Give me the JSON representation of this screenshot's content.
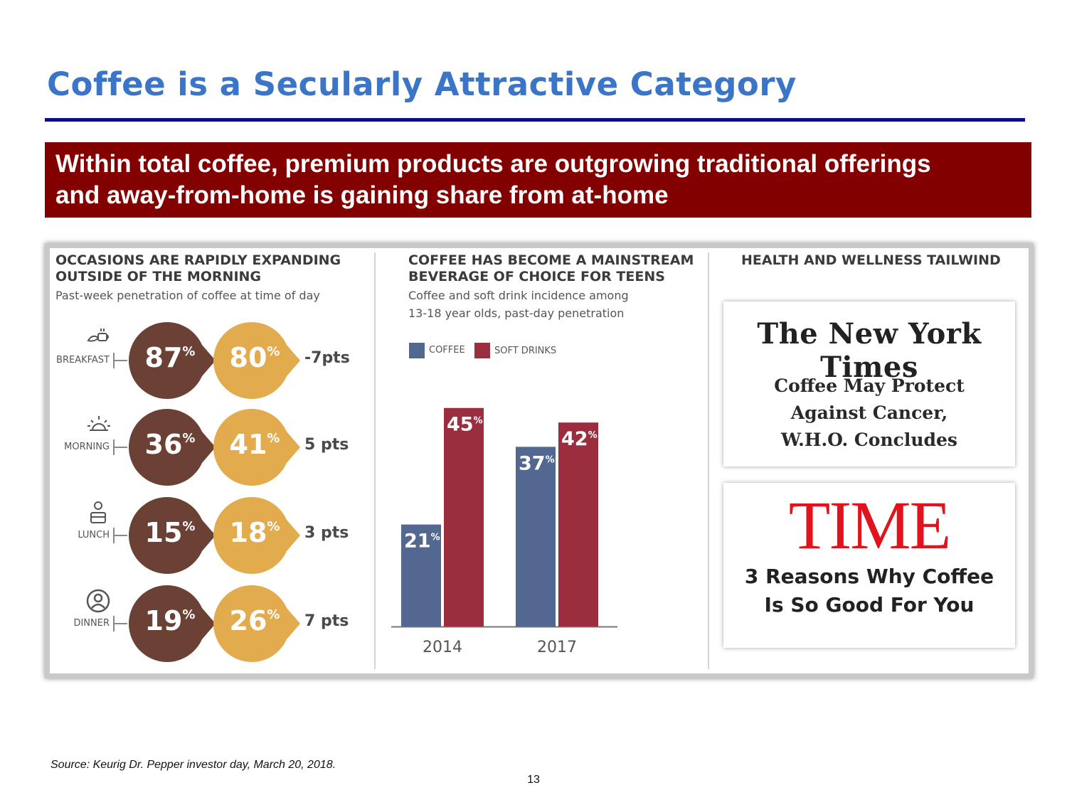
{
  "slide": {
    "title": "Coffee is a Secularly Attractive Category",
    "banner_line1": "Within total coffee, premium products are outgrowing traditional offerings",
    "banner_line2": "and away-from-home is gaining share from at-home",
    "source": "Source: Keurig Dr. Pepper investor day, March 20, 2018.",
    "page_number": "13"
  },
  "colors": {
    "title_blue": "#3a75c8",
    "rule_navy": "#0a0f8a",
    "banner_red": "#820000",
    "brown": "#6b4135",
    "gold": "#e2ab4e",
    "coffee_blue": "#526890",
    "soft_red": "#9b2e3e",
    "time_red": "#e0141c"
  },
  "occasions": {
    "heading_line1": "OCCASIONS ARE RAPIDLY EXPANDING",
    "heading_line2": "OUTSIDE OF THE MORNING",
    "subtitle": "Past-week penetration of coffee at time of day",
    "rows": [
      {
        "label": "BREAKFAST",
        "icon": "croissant-cup-icon",
        "before": "87",
        "after": "80",
        "delta": "-7pts"
      },
      {
        "label": "MORNING",
        "icon": "sunrise-icon",
        "before": "36",
        "after": "41",
        "delta": "5 pts"
      },
      {
        "label": "LUNCH",
        "icon": "lunchbox-icon",
        "before": "15",
        "after": "18",
        "delta": "3 pts"
      },
      {
        "label": "DINNER",
        "icon": "person-icon",
        "before": "19",
        "after": "26",
        "delta": "7 pts"
      }
    ],
    "pct": "%"
  },
  "teens": {
    "heading_line1": "COFFEE HAS BECOME A MAINSTREAM",
    "heading_line2": "BEVERAGE OF CHOICE FOR TEENS",
    "subtitle_line1": "Coffee and soft drink incidence among",
    "subtitle_line2": "13-18 year olds, past-day penetration"
  },
  "chart_data": {
    "type": "bar",
    "title": "Coffee and soft drink incidence among 13-18 year olds, past-day penetration",
    "categories": [
      "2014",
      "2017"
    ],
    "series": [
      {
        "name": "COFFEE",
        "values": [
          21,
          37
        ],
        "color": "#526890"
      },
      {
        "name": "SOFT DRINKS",
        "values": [
          45,
          42
        ],
        "color": "#9b2e3e"
      }
    ],
    "value_suffix": "%",
    "ylim": [
      0,
      50
    ],
    "xlabel": "",
    "ylabel": "",
    "grid": false,
    "legend_position": "top-left"
  },
  "health": {
    "heading": "HEALTH AND WELLNESS TAILWIND",
    "nyt_logo": "The New York Times",
    "nyt_line1": "Coffee May Protect",
    "nyt_line2": "Against Cancer,",
    "nyt_line3": "W.H.O. Concludes",
    "time_logo": "TIME",
    "time_line1": "3 Reasons Why Coffee",
    "time_line2": "Is So Good For You"
  }
}
